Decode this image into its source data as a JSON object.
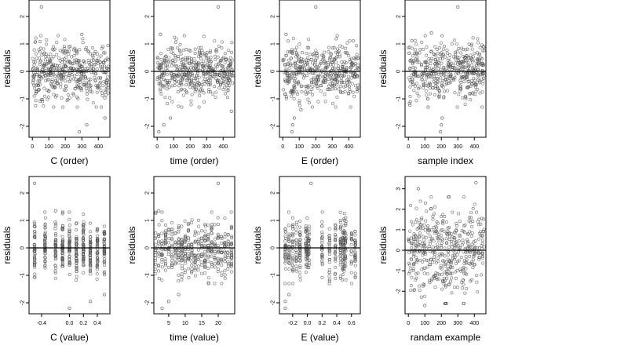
{
  "figure": {
    "colors": {
      "points": "#555555",
      "zero_line": "#000000",
      "frame": "#000000"
    }
  },
  "chart_data": [
    {
      "type": "scatter",
      "xlabel": "C (order)",
      "ylabel": "residuals",
      "xlim": [
        -20,
        470
      ],
      "ylim": [
        -2.4,
        2.6
      ],
      "x_ticks": [
        0,
        100,
        200,
        300,
        400
      ],
      "y_ticks": [
        -2,
        -1,
        0,
        1,
        2
      ],
      "zero_line": true,
      "outliers": [
        {
          "x": 55,
          "y": 2.35
        },
        {
          "x": 285,
          "y": -2.2
        },
        {
          "x": 330,
          "y": -1.95
        },
        {
          "x": 440,
          "y": -1.7
        },
        {
          "x": 20,
          "y": -1.25
        },
        {
          "x": 300,
          "y": 1.35
        }
      ],
      "points_summary": {
        "n": 460,
        "x_range": [
          0,
          460
        ],
        "y_center": 0.0,
        "y_spread": 0.5
      }
    },
    {
      "type": "scatter",
      "xlabel": "time (order)",
      "ylabel": "residuals",
      "xlim": [
        -20,
        470
      ],
      "ylim": [
        -2.4,
        2.6
      ],
      "x_ticks": [
        0,
        100,
        200,
        300,
        400
      ],
      "y_ticks": [
        -2,
        -1,
        0,
        1,
        2
      ],
      "zero_line": true,
      "outliers": [
        {
          "x": 370,
          "y": 2.35
        },
        {
          "x": 10,
          "y": -2.2
        },
        {
          "x": 40,
          "y": -1.95
        },
        {
          "x": 80,
          "y": -1.7
        },
        {
          "x": 20,
          "y": 1.35
        },
        {
          "x": 450,
          "y": -1.45
        }
      ],
      "points_summary": {
        "n": 460,
        "x_range": [
          0,
          460
        ],
        "y_center": 0.0,
        "y_spread": 0.5
      }
    },
    {
      "type": "scatter",
      "xlabel": "E (order)",
      "ylabel": "residuals",
      "xlim": [
        -20,
        470
      ],
      "ylim": [
        -2.4,
        2.6
      ],
      "x_ticks": [
        0,
        100,
        200,
        300,
        400
      ],
      "y_ticks": [
        -2,
        -1,
        0,
        1,
        2
      ],
      "zero_line": true,
      "outliers": [
        {
          "x": 200,
          "y": 2.35
        },
        {
          "x": 55,
          "y": -2.2
        },
        {
          "x": 60,
          "y": -1.95
        },
        {
          "x": 70,
          "y": -1.7
        },
        {
          "x": 20,
          "y": 1.35
        },
        {
          "x": 110,
          "y": -1.4
        }
      ],
      "points_summary": {
        "n": 460,
        "x_range": [
          0,
          460
        ],
        "y_center": 0.0,
        "y_spread": 0.5
      }
    },
    {
      "type": "scatter",
      "xlabel": "sample index",
      "ylabel": "residuals",
      "xlim": [
        -20,
        470
      ],
      "ylim": [
        -2.4,
        2.6
      ],
      "x_ticks": [
        0,
        100,
        200,
        300,
        400
      ],
      "y_ticks": [
        -2,
        -1,
        0,
        1,
        2
      ],
      "zero_line": true,
      "outliers": [
        {
          "x": 300,
          "y": 2.35
        },
        {
          "x": 195,
          "y": -2.2
        },
        {
          "x": 200,
          "y": -1.95
        },
        {
          "x": 205,
          "y": -1.7
        },
        {
          "x": 140,
          "y": 1.4
        },
        {
          "x": 120,
          "y": -1.3
        }
      ],
      "points_summary": {
        "n": 460,
        "x_range": [
          0,
          460
        ],
        "y_center": 0.0,
        "y_spread": 0.5
      }
    },
    {
      "type": "scatter",
      "xlabel": "C (value)",
      "ylabel": "residuals",
      "xlim": [
        -0.58,
        0.58
      ],
      "ylim": [
        -2.4,
        2.6
      ],
      "x_ticks": [
        -0.4,
        0.0,
        0.2,
        0.4
      ],
      "x_tick_labels": [
        "-0.4",
        "0.0",
        "0.2",
        "0.4"
      ],
      "y_ticks": [
        -2,
        -1,
        0,
        1,
        2
      ],
      "zero_line": true,
      "x_levels": [
        -0.5,
        -0.35,
        -0.2,
        -0.1,
        0.0,
        0.1,
        0.2,
        0.3,
        0.4,
        0.5
      ],
      "outliers": [
        {
          "x": -0.5,
          "y": 2.35
        },
        {
          "x": 0.0,
          "y": -2.2
        },
        {
          "x": 0.3,
          "y": -1.95
        },
        {
          "x": 0.5,
          "y": -1.7
        },
        {
          "x": -0.2,
          "y": 1.35
        }
      ],
      "points_summary": {
        "n": 460,
        "y_center": 0.0,
        "y_spread": 0.5
      }
    },
    {
      "type": "scatter",
      "xlabel": "time (value)",
      "ylabel": "residuals",
      "xlim": [
        0.5,
        25
      ],
      "ylim": [
        -2.4,
        2.6
      ],
      "x_ticks": [
        5,
        10,
        15,
        20
      ],
      "y_ticks": [
        -2,
        -1,
        0,
        1,
        2
      ],
      "zero_line": true,
      "x_levels": [
        1,
        2,
        3,
        4,
        5,
        6,
        7,
        8,
        9,
        10,
        11,
        12,
        13,
        14,
        15,
        16,
        17,
        18,
        19,
        20,
        21,
        22,
        23,
        24
      ],
      "outliers": [
        {
          "x": 20,
          "y": 2.35
        },
        {
          "x": 3,
          "y": -2.2
        },
        {
          "x": 5,
          "y": -1.95
        },
        {
          "x": 8,
          "y": -1.7
        },
        {
          "x": 2,
          "y": 1.35
        }
      ],
      "points_summary": {
        "n": 460,
        "y_center": 0.0,
        "y_spread": 0.5
      }
    },
    {
      "type": "scatter",
      "xlabel": "E (value)",
      "ylabel": "residuals",
      "xlim": [
        -0.38,
        0.72
      ],
      "ylim": [
        -2.4,
        2.6
      ],
      "x_ticks": [
        -0.2,
        0.0,
        0.2,
        0.4,
        0.6
      ],
      "x_tick_labels": [
        "-0.2",
        "0.0",
        "0.2",
        "0.4",
        "0.6"
      ],
      "y_ticks": [
        -2,
        -1,
        0,
        1,
        2
      ],
      "zero_line": true,
      "x_levels": [
        -0.3,
        -0.25,
        -0.2,
        -0.15,
        -0.1,
        -0.02,
        0.0,
        0.02,
        0.2,
        0.3,
        0.38,
        0.45,
        0.48,
        0.5,
        0.52,
        0.6,
        0.65
      ],
      "outliers": [
        {
          "x": 0.05,
          "y": 2.35
        },
        {
          "x": -0.3,
          "y": -2.2
        },
        {
          "x": -0.3,
          "y": -1.95
        },
        {
          "x": -0.25,
          "y": -1.7
        }
      ],
      "points_summary": {
        "n": 460,
        "y_center": 0.0,
        "y_spread": 0.5
      }
    },
    {
      "type": "scatter",
      "xlabel": "randam example",
      "ylabel": "residuals",
      "xlim": [
        -20,
        470
      ],
      "ylim": [
        -3.1,
        3.6
      ],
      "x_ticks": [
        0,
        100,
        200,
        300,
        400
      ],
      "y_ticks": [
        -2,
        -1,
        0,
        1,
        2,
        3
      ],
      "zero_line": true,
      "outliers": [
        {
          "x": 410,
          "y": 3.3
        },
        {
          "x": 60,
          "y": 3.0
        },
        {
          "x": 100,
          "y": -2.7
        },
        {
          "x": 230,
          "y": -2.6
        }
      ],
      "points_summary": {
        "n": 460,
        "x_range": [
          0,
          460
        ],
        "y_center": 0.0,
        "y_spread": 1.0
      }
    }
  ]
}
